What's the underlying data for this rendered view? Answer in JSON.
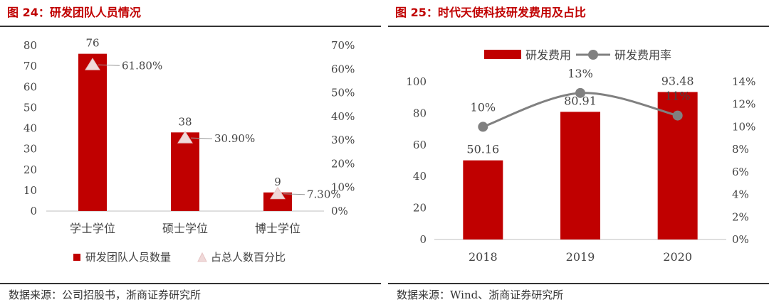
{
  "left": {
    "title": "图 24：研发团队人员情况",
    "source": "数据来源：公司招股书，浙商证券研究所",
    "chart_data": {
      "type": "bar",
      "categories": [
        "学士学位",
        "硕士学位",
        "博士学位"
      ],
      "series": [
        {
          "name": "研发团队人员数量",
          "kind": "bar",
          "axis": "left",
          "values": [
            76,
            38,
            9
          ],
          "color": "#c00000"
        },
        {
          "name": "占总人数百分比",
          "kind": "marker",
          "axis": "right",
          "values": [
            61.8,
            30.9,
            7.3
          ],
          "labels": [
            "61.80%",
            "30.90%",
            "7.30%"
          ],
          "color": "#f0d9d9"
        }
      ],
      "bar_labels": [
        "76",
        "38",
        "9"
      ],
      "ylim": [
        0,
        80
      ],
      "yticks": [
        "0",
        "10",
        "20",
        "30",
        "40",
        "50",
        "60",
        "70",
        "80"
      ],
      "y2lim": [
        0,
        70
      ],
      "y2ticks": [
        "0%",
        "10%",
        "20%",
        "30%",
        "40%",
        "50%",
        "60%",
        "70%"
      ],
      "grid": false,
      "legend": "bottom"
    }
  },
  "right": {
    "title": "图 25：时代天使科技研发费用及占比",
    "source": "数据来源：Wind、浙商证券研究所",
    "chart_data": {
      "type": "bar",
      "categories": [
        "2018",
        "2019",
        "2020"
      ],
      "series": [
        {
          "name": "研发费用",
          "kind": "bar",
          "axis": "left",
          "values": [
            50.16,
            80.91,
            93.48
          ],
          "labels": [
            "50.16",
            "80.91",
            "93.48"
          ],
          "color": "#c00000"
        },
        {
          "name": "研发费用率",
          "kind": "line",
          "axis": "right",
          "values": [
            10,
            13,
            11
          ],
          "labels": [
            "10%",
            "13%",
            "11%"
          ],
          "color": "#808080"
        }
      ],
      "ylim": [
        0,
        100
      ],
      "yticks": [
        "0",
        "20",
        "40",
        "60",
        "80",
        "100"
      ],
      "y2lim": [
        0,
        14
      ],
      "y2ticks": [
        "0%",
        "2%",
        "4%",
        "6%",
        "8%",
        "10%",
        "12%",
        "14%"
      ],
      "grid": false,
      "legend": "top"
    }
  }
}
